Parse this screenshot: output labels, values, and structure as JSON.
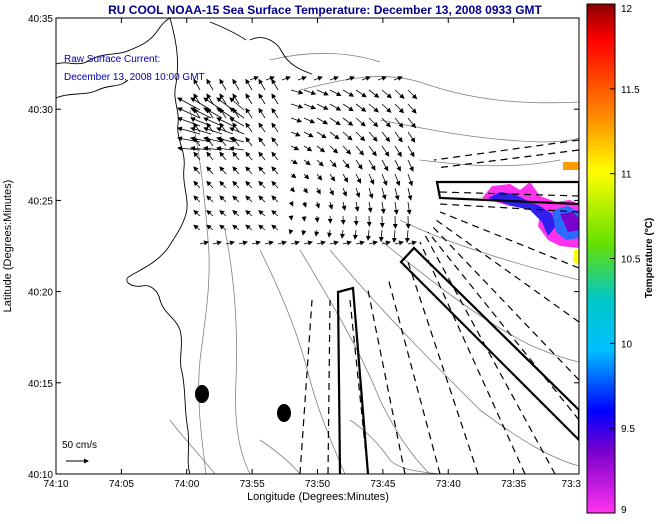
{
  "chart_data": {
    "type": "heatmap",
    "title": "RU COOL  NOAA-15  Sea Surface Temperature:  December 13, 2008 0933 GMT",
    "annotation": {
      "line1": "Raw Surface Current:",
      "line2": "December 13, 2008 10:00 GMT"
    },
    "xlabel": "Longitude (Degrees:Minutes)",
    "ylabel": "Latitude (Degrees:Minutes)",
    "x_tick_labels": [
      "74:10",
      "74:05",
      "74:00",
      "73:55",
      "73:50",
      "73:45",
      "73:40",
      "73:35",
      "73:3"
    ],
    "y_tick_labels": [
      "40:35",
      "40:30",
      "40:25",
      "40:20",
      "40:15",
      "40:10"
    ],
    "xlim_minutes_west": [
      10,
      30
    ],
    "ylim_minutes_north": [
      10,
      35
    ],
    "scale_label": "50 cm/s",
    "colorbar": {
      "label": "Temperature (°C)",
      "range": [
        9,
        12
      ],
      "tick_labels": [
        "12",
        "11.5",
        "11",
        "10.5",
        "10",
        "9.5",
        "9"
      ],
      "tick_values": [
        12,
        11.5,
        11,
        10.5,
        10,
        9.5,
        9
      ]
    },
    "colors": {
      "title": "#00008b",
      "annotation": "#0000aa",
      "coast": "#000000",
      "bathymetry": "#808080",
      "vectors": "#000000"
    }
  }
}
